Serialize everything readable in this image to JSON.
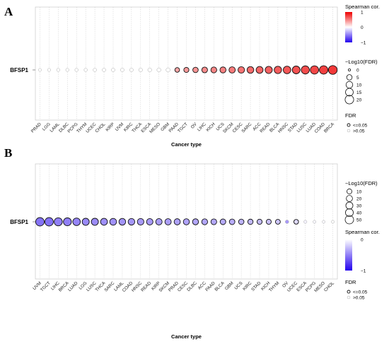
{
  "chart_data": [
    {
      "type": "scatter",
      "panel_label": "A",
      "gene": "BFSP1",
      "xlabel": "Cancer type",
      "categories": [
        "PRAD",
        "LGG",
        "LAML",
        "DLBC",
        "PCPG",
        "THYM",
        "UCEC",
        "CHOL",
        "KIRP",
        "UVM",
        "KIRC",
        "THCA",
        "ESCA",
        "MESO",
        "GBM",
        "PAAD",
        "TGCT",
        "OV",
        "LIHC",
        "KICH",
        "UCS",
        "SKCM",
        "CESC",
        "SARC",
        "ACC",
        "READ",
        "BLCA",
        "HNSC",
        "STAD",
        "LUSC",
        "LUAD",
        "COAD",
        "BRCA"
      ],
      "spearman_cor": [
        0,
        0,
        0,
        0,
        0,
        0,
        0,
        0,
        0,
        0,
        0,
        0,
        0,
        0,
        0,
        0.35,
        0.4,
        0.42,
        0.45,
        0.48,
        0.5,
        0.52,
        0.55,
        0.58,
        0.6,
        0.62,
        0.64,
        0.66,
        0.68,
        0.7,
        0.72,
        0.75,
        0.78
      ],
      "neg_log10_fdr": [
        0.3,
        0.4,
        0.5,
        0.5,
        0.6,
        0.6,
        0.7,
        0.8,
        0.9,
        1,
        1,
        1.2,
        1.4,
        1.6,
        1.8,
        3,
        4,
        5,
        6,
        6.5,
        7,
        8,
        9,
        10,
        11,
        12,
        13,
        14,
        15,
        17,
        18,
        19,
        21
      ],
      "fdr_significant": [
        false,
        false,
        false,
        false,
        false,
        false,
        false,
        false,
        false,
        false,
        false,
        false,
        false,
        false,
        false,
        true,
        true,
        true,
        true,
        true,
        true,
        true,
        true,
        true,
        true,
        true,
        true,
        true,
        true,
        true,
        true,
        true,
        true
      ],
      "color_legend": {
        "title": "Spearman cor.",
        "ticks": [
          "1",
          "0",
          "−1"
        ],
        "low_color": "#2200ee",
        "mid_color": "#ffffff",
        "high_color": "#ee0000"
      },
      "size_legend": {
        "title": "−Log10(FDR)",
        "values": [
          0,
          5,
          10,
          15,
          20
        ]
      },
      "fdr_legend": {
        "title": "FDR",
        "items": [
          "<=0.05",
          ">0.05"
        ]
      }
    },
    {
      "type": "scatter",
      "panel_label": "B",
      "gene": "BFSP1",
      "xlabel": "Cancer type",
      "categories": [
        "UVM",
        "TGCT",
        "LIHC",
        "BRCA",
        "LUAD",
        "LGG",
        "LUSC",
        "THCA",
        "SARC",
        "LAML",
        "COAD",
        "HNSC",
        "READ",
        "KIRP",
        "SKCM",
        "PRAD",
        "CESC",
        "DLBC",
        "ACC",
        "PAAD",
        "BLCA",
        "GBM",
        "UCS",
        "KIRC",
        "STAD",
        "KICH",
        "THYM",
        "OV",
        "UCEC",
        "ESCA",
        "PCPG",
        "MESO",
        "CHOL"
      ],
      "spearman_cor": [
        -0.55,
        -0.55,
        -0.5,
        -0.5,
        -0.48,
        -0.46,
        -0.45,
        -0.44,
        -0.43,
        -0.42,
        -0.41,
        -0.4,
        -0.4,
        -0.39,
        -0.38,
        -0.37,
        -0.36,
        -0.35,
        -0.35,
        -0.34,
        -0.33,
        -0.32,
        -0.3,
        -0.28,
        -0.27,
        -0.25,
        -0.22,
        -0.4,
        -0.15,
        -0.05,
        -0.03,
        -0.02,
        0
      ],
      "neg_log10_fdr": [
        50,
        50,
        44,
        42,
        36,
        30,
        30,
        28,
        27,
        26,
        25,
        24,
        23,
        22,
        21,
        20,
        19,
        18,
        17,
        16,
        15,
        14,
        13,
        12,
        11,
        10,
        9,
        2,
        8,
        1,
        0.8,
        0.6,
        0.5
      ],
      "fdr_significant": [
        true,
        true,
        true,
        true,
        true,
        true,
        true,
        true,
        true,
        true,
        true,
        true,
        true,
        true,
        true,
        true,
        true,
        true,
        true,
        true,
        true,
        true,
        true,
        true,
        true,
        true,
        true,
        false,
        true,
        false,
        false,
        false,
        false
      ],
      "color_legend": {
        "title": "Spearman cor.",
        "ticks": [
          "0",
          "−1"
        ],
        "low_color": "#2200ee",
        "mid_color": "#ffffff",
        "high_color": "#ee0000"
      },
      "size_legend": {
        "title": "−Log10(FDR)",
        "values": [
          10,
          20,
          30,
          40,
          50
        ]
      },
      "fdr_legend": {
        "title": "FDR",
        "items": [
          "<=0.05",
          ">0.05"
        ]
      }
    }
  ]
}
